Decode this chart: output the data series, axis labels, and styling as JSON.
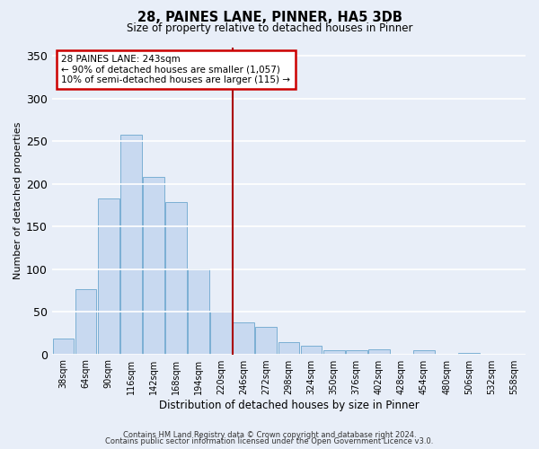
{
  "title": "28, PAINES LANE, PINNER, HA5 3DB",
  "subtitle": "Size of property relative to detached houses in Pinner",
  "xlabel": "Distribution of detached houses by size in Pinner",
  "ylabel": "Number of detached properties",
  "bar_color": "#c8d9f0",
  "bar_edge_color": "#7bafd4",
  "background_color": "#e8eef8",
  "grid_color": "#ffffff",
  "vline_color": "#aa0000",
  "annotation_title": "28 PAINES LANE: 243sqm",
  "annotation_line1": "← 90% of detached houses are smaller (1,057)",
  "annotation_line2": "10% of semi-detached houses are larger (115) →",
  "annotation_box_color": "#ffffff",
  "annotation_border_color": "#cc0000",
  "ylim": [
    0,
    360
  ],
  "yticks": [
    0,
    50,
    100,
    150,
    200,
    250,
    300,
    350
  ],
  "bin_labels": [
    "38sqm",
    "64sqm",
    "90sqm",
    "116sqm",
    "142sqm",
    "168sqm",
    "194sqm",
    "220sqm",
    "246sqm",
    "272sqm",
    "298sqm",
    "324sqm",
    "350sqm",
    "376sqm",
    "402sqm",
    "428sqm",
    "454sqm",
    "480sqm",
    "506sqm",
    "532sqm",
    "558sqm"
  ],
  "bar_heights": [
    18,
    76,
    183,
    257,
    208,
    178,
    101,
    51,
    37,
    32,
    14,
    10,
    5,
    5,
    6,
    0,
    5,
    0,
    2,
    0,
    0
  ],
  "vline_bin_index": 8,
  "footnote1": "Contains HM Land Registry data © Crown copyright and database right 2024.",
  "footnote2": "Contains public sector information licensed under the Open Government Licence v3.0."
}
